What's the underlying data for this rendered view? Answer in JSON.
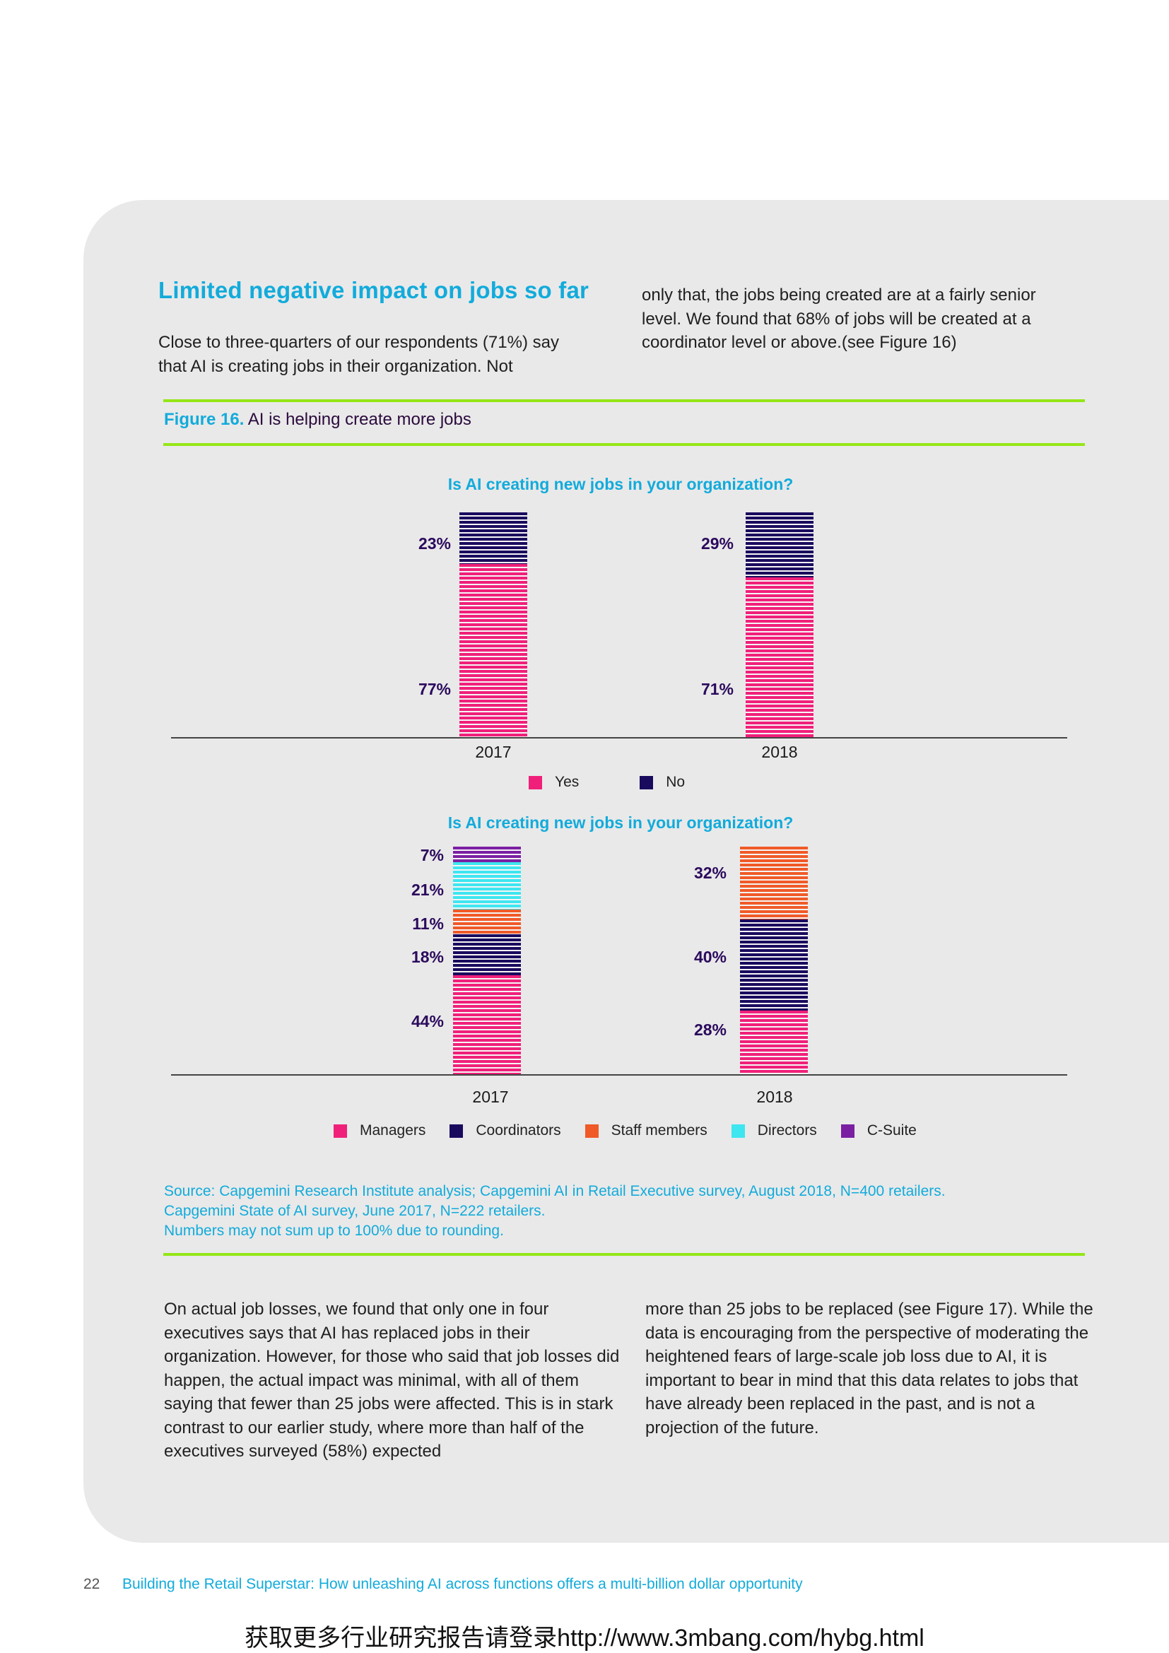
{
  "heading": "Limited negative impact on jobs so far",
  "paragraphs": {
    "p1": "Close to three-quarters of our respondents (71%) say that AI is creating jobs in their organization. Not",
    "p2": "only that, the jobs being created are at a fairly senior level. We found that  68% of jobs will be created at a coordinator level or above.(see Figure 16)",
    "p3": "On actual job losses, we found that only one in four executives says that AI has replaced jobs in their organization. However, for those who said that job losses did happen, the actual impact was minimal, with all of them saying that fewer than 25 jobs were affected. This is in stark contrast to our earlier study, where more than half of the executives surveyed (58%) expected",
    "p4": "more than 25 jobs to be replaced (see Figure 17). While the data is encouraging from the perspective of moderating the heightened fears of large-scale job loss due to AI, it is important to bear in mind that this data relates to jobs that have already been replaced in the past, and is not a projection of the future."
  },
  "figure": {
    "label": "Figure 16.",
    "title": "AI is helping create more jobs"
  },
  "colors": {
    "yes": "#f0207a",
    "no": "#1a0a5e",
    "managers": "#f0207a",
    "coordinators": "#1a0a5e",
    "staff": "#f05a28",
    "directors": "#3ee6f0",
    "csuite": "#7b1fa2"
  },
  "chart_data": [
    {
      "type": "bar",
      "stacked": true,
      "title": "Is AI creating new jobs in your organization?",
      "categories": [
        "2017",
        "2018"
      ],
      "series": [
        {
          "name": "Yes",
          "values": [
            77,
            71
          ]
        },
        {
          "name": "No",
          "values": [
            23,
            29
          ]
        }
      ],
      "legend": [
        "Yes",
        "No"
      ],
      "ylim": [
        0,
        100
      ]
    },
    {
      "type": "bar",
      "stacked": true,
      "title": "Is AI creating new jobs in your organization?",
      "categories": [
        "2017",
        "2018"
      ],
      "series": [
        {
          "name": "Managers",
          "values": [
            44,
            28
          ]
        },
        {
          "name": "Coordinators",
          "values": [
            18,
            40
          ]
        },
        {
          "name": "Staff members",
          "values": [
            11,
            32
          ]
        },
        {
          "name": "Directors",
          "values": [
            21,
            0
          ]
        },
        {
          "name": "C-Suite",
          "values": [
            7,
            0
          ]
        }
      ],
      "legend": [
        "Managers",
        "Coordinators",
        "Staff members",
        "Directors",
        "C-Suite"
      ],
      "ylim": [
        0,
        100
      ]
    }
  ],
  "labels": {
    "c1_2017_no": "23%",
    "c1_2017_yes": "77%",
    "c1_2018_no": "29%",
    "c1_2018_yes": "71%",
    "c2_2017_csuite": "7%",
    "c2_2017_directors": "21%",
    "c2_2017_staff": "11%",
    "c2_2017_coord": "18%",
    "c2_2017_managers": "44%",
    "c2_2018_staff": "32%",
    "c2_2018_coord": "40%",
    "c2_2018_managers": "28%"
  },
  "source": {
    "line1": "Source: Capgemini Research Institute analysis; Capgemini AI in Retail Executive survey, August 2018, N=400 retailers.",
    "line2": "Capgemini State of AI survey, June 2017, N=222 retailers.",
    "line3": "Numbers may not sum up to 100% due to rounding."
  },
  "footer": {
    "page": "22",
    "title": "Building the Retail Superstar: How unleashing AI across functions offers a multi-billion dollar opportunity"
  },
  "watermark": "获取更多行业研究报告请登录http://www.3mbang.com/hybg.html"
}
